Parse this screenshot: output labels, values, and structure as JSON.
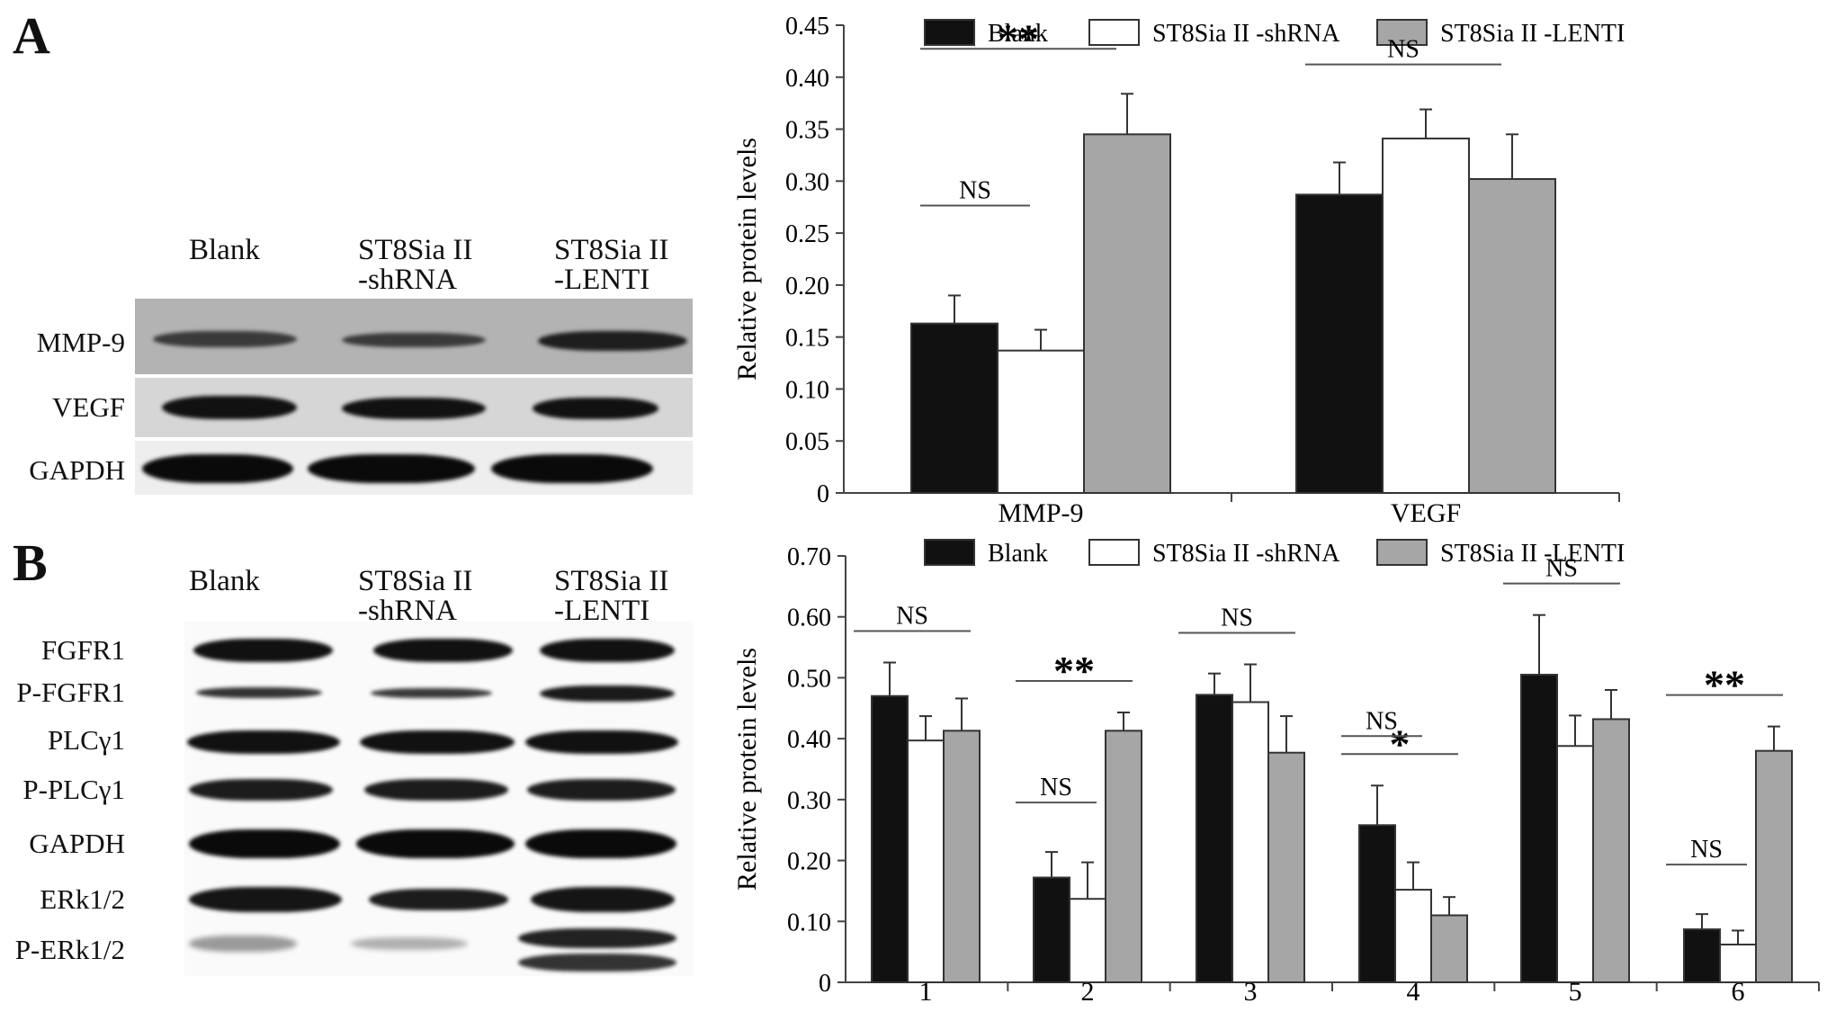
{
  "panels": {
    "a_letter": "A",
    "b_letter": "B"
  },
  "blot_a": {
    "lanes": [
      "Blank",
      "ST8Sia II\n-shRNA",
      "ST8Sia II\n-LENTI"
    ],
    "rows": [
      "MMP-9",
      "VEGF",
      "GAPDH"
    ]
  },
  "blot_b": {
    "lanes": [
      "Blank",
      "ST8Sia II\n-shRNA",
      "ST8Sia II\n-LENTI"
    ],
    "rows": [
      "FGFR1",
      "P-FGFR1",
      "PLCγ1",
      "P-PLCγ1",
      "GAPDH",
      "ERk1/2",
      "P-ERk1/2"
    ]
  },
  "colors": {
    "blank": "#111111",
    "shrna": "#ffffff",
    "lenti": "#a6a6a6"
  },
  "chart_data": [
    {
      "type": "bar",
      "categories": [
        "MMP-9",
        "VEGF"
      ],
      "ylabel": "Relative protein levels",
      "ylim": [
        0,
        0.45
      ],
      "yticks": [
        "0",
        "0.05",
        "0.10",
        "0.15",
        "0.20",
        "0.25",
        "0.30",
        "0.35",
        "0.40",
        "0.45"
      ],
      "legend_position": "top",
      "series": [
        {
          "name": "Blank",
          "values": [
            0.163,
            0.287
          ],
          "errors": [
            0.027,
            0.031
          ]
        },
        {
          "name": "ST8Sia II -shRNA",
          "values": [
            0.137,
            0.341
          ],
          "errors": [
            0.02,
            0.028
          ]
        },
        {
          "name": "ST8Sia II -LENTI",
          "values": [
            0.345,
            0.302
          ],
          "errors": [
            0.039,
            0.043
          ]
        }
      ],
      "annotations": [
        {
          "text": "**",
          "group": 0,
          "span": [
            0,
            2
          ]
        },
        {
          "text": "NS",
          "group": 0,
          "span": [
            0,
            1
          ]
        },
        {
          "text": "NS",
          "group": 1,
          "span": [
            0,
            2
          ]
        }
      ]
    },
    {
      "type": "bar",
      "categories": [
        "1",
        "2",
        "3",
        "4",
        "5",
        "6"
      ],
      "ylabel": "Relative protein levels",
      "ylim": [
        0,
        0.7
      ],
      "yticks": [
        "0",
        "0.10",
        "0.20",
        "0.30",
        "0.40",
        "0.50",
        "0.60",
        "0.70"
      ],
      "legend_position": "top",
      "series": [
        {
          "name": "Blank",
          "values": [
            0.47,
            0.172,
            0.472,
            0.258,
            0.505,
            0.087
          ],
          "errors": [
            0.055,
            0.042,
            0.035,
            0.065,
            0.098,
            0.025
          ]
        },
        {
          "name": "ST8Sia II -shRNA",
          "values": [
            0.397,
            0.137,
            0.46,
            0.152,
            0.388,
            0.062
          ],
          "errors": [
            0.04,
            0.06,
            0.062,
            0.045,
            0.05,
            0.023
          ]
        },
        {
          "name": "ST8Sia II -LENTI",
          "values": [
            0.413,
            0.413,
            0.377,
            0.11,
            0.432,
            0.38
          ],
          "errors": [
            0.053,
            0.03,
            0.06,
            0.03,
            0.048,
            0.04
          ]
        }
      ],
      "annotations": [
        {
          "text": "NS",
          "group": 0,
          "span": [
            0,
            2
          ]
        },
        {
          "text": "**",
          "group": 1,
          "span": [
            0,
            2
          ]
        },
        {
          "text": "NS",
          "group": 1,
          "span": [
            0,
            1
          ]
        },
        {
          "text": "NS",
          "group": 2,
          "span": [
            0,
            2
          ]
        },
        {
          "text": "*",
          "group": 3,
          "span": [
            0,
            2
          ]
        },
        {
          "text": "NS",
          "group": 3,
          "span": [
            0,
            1
          ]
        },
        {
          "text": "NS",
          "group": 4,
          "span": [
            0,
            2
          ]
        },
        {
          "text": "**",
          "group": 5,
          "span": [
            0,
            2
          ]
        },
        {
          "text": "NS",
          "group": 5,
          "span": [
            0,
            1
          ]
        }
      ]
    }
  ]
}
